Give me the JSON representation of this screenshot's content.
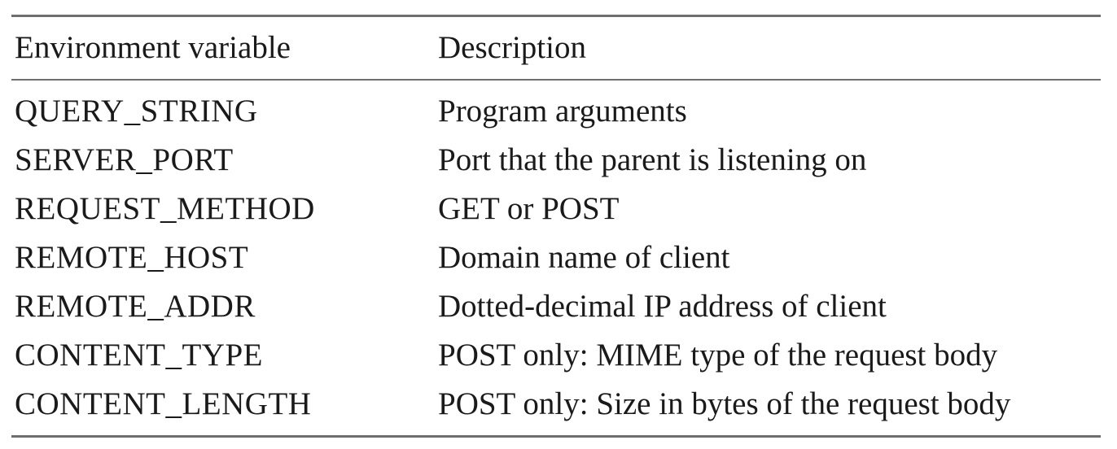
{
  "table": {
    "headers": [
      "Environment variable",
      "Description"
    ],
    "rows": [
      {
        "variable": "QUERY_STRING",
        "description": "Program arguments"
      },
      {
        "variable": "SERVER_PORT",
        "description": "Port that the parent is listening on"
      },
      {
        "variable": "REQUEST_METHOD",
        "description": "GET or POST"
      },
      {
        "variable": "REMOTE_HOST",
        "description": "Domain name of client"
      },
      {
        "variable": "REMOTE_ADDR",
        "description": "Dotted-decimal IP address of client"
      },
      {
        "variable": "CONTENT_TYPE",
        "description": "POST only: MIME type of the request body"
      },
      {
        "variable": "CONTENT_LENGTH",
        "description": "POST only: Size in bytes of the request body"
      }
    ]
  },
  "colors": {
    "rule": "#6e6e6e",
    "text": "#1a1a1a",
    "background": "#ffffff"
  }
}
